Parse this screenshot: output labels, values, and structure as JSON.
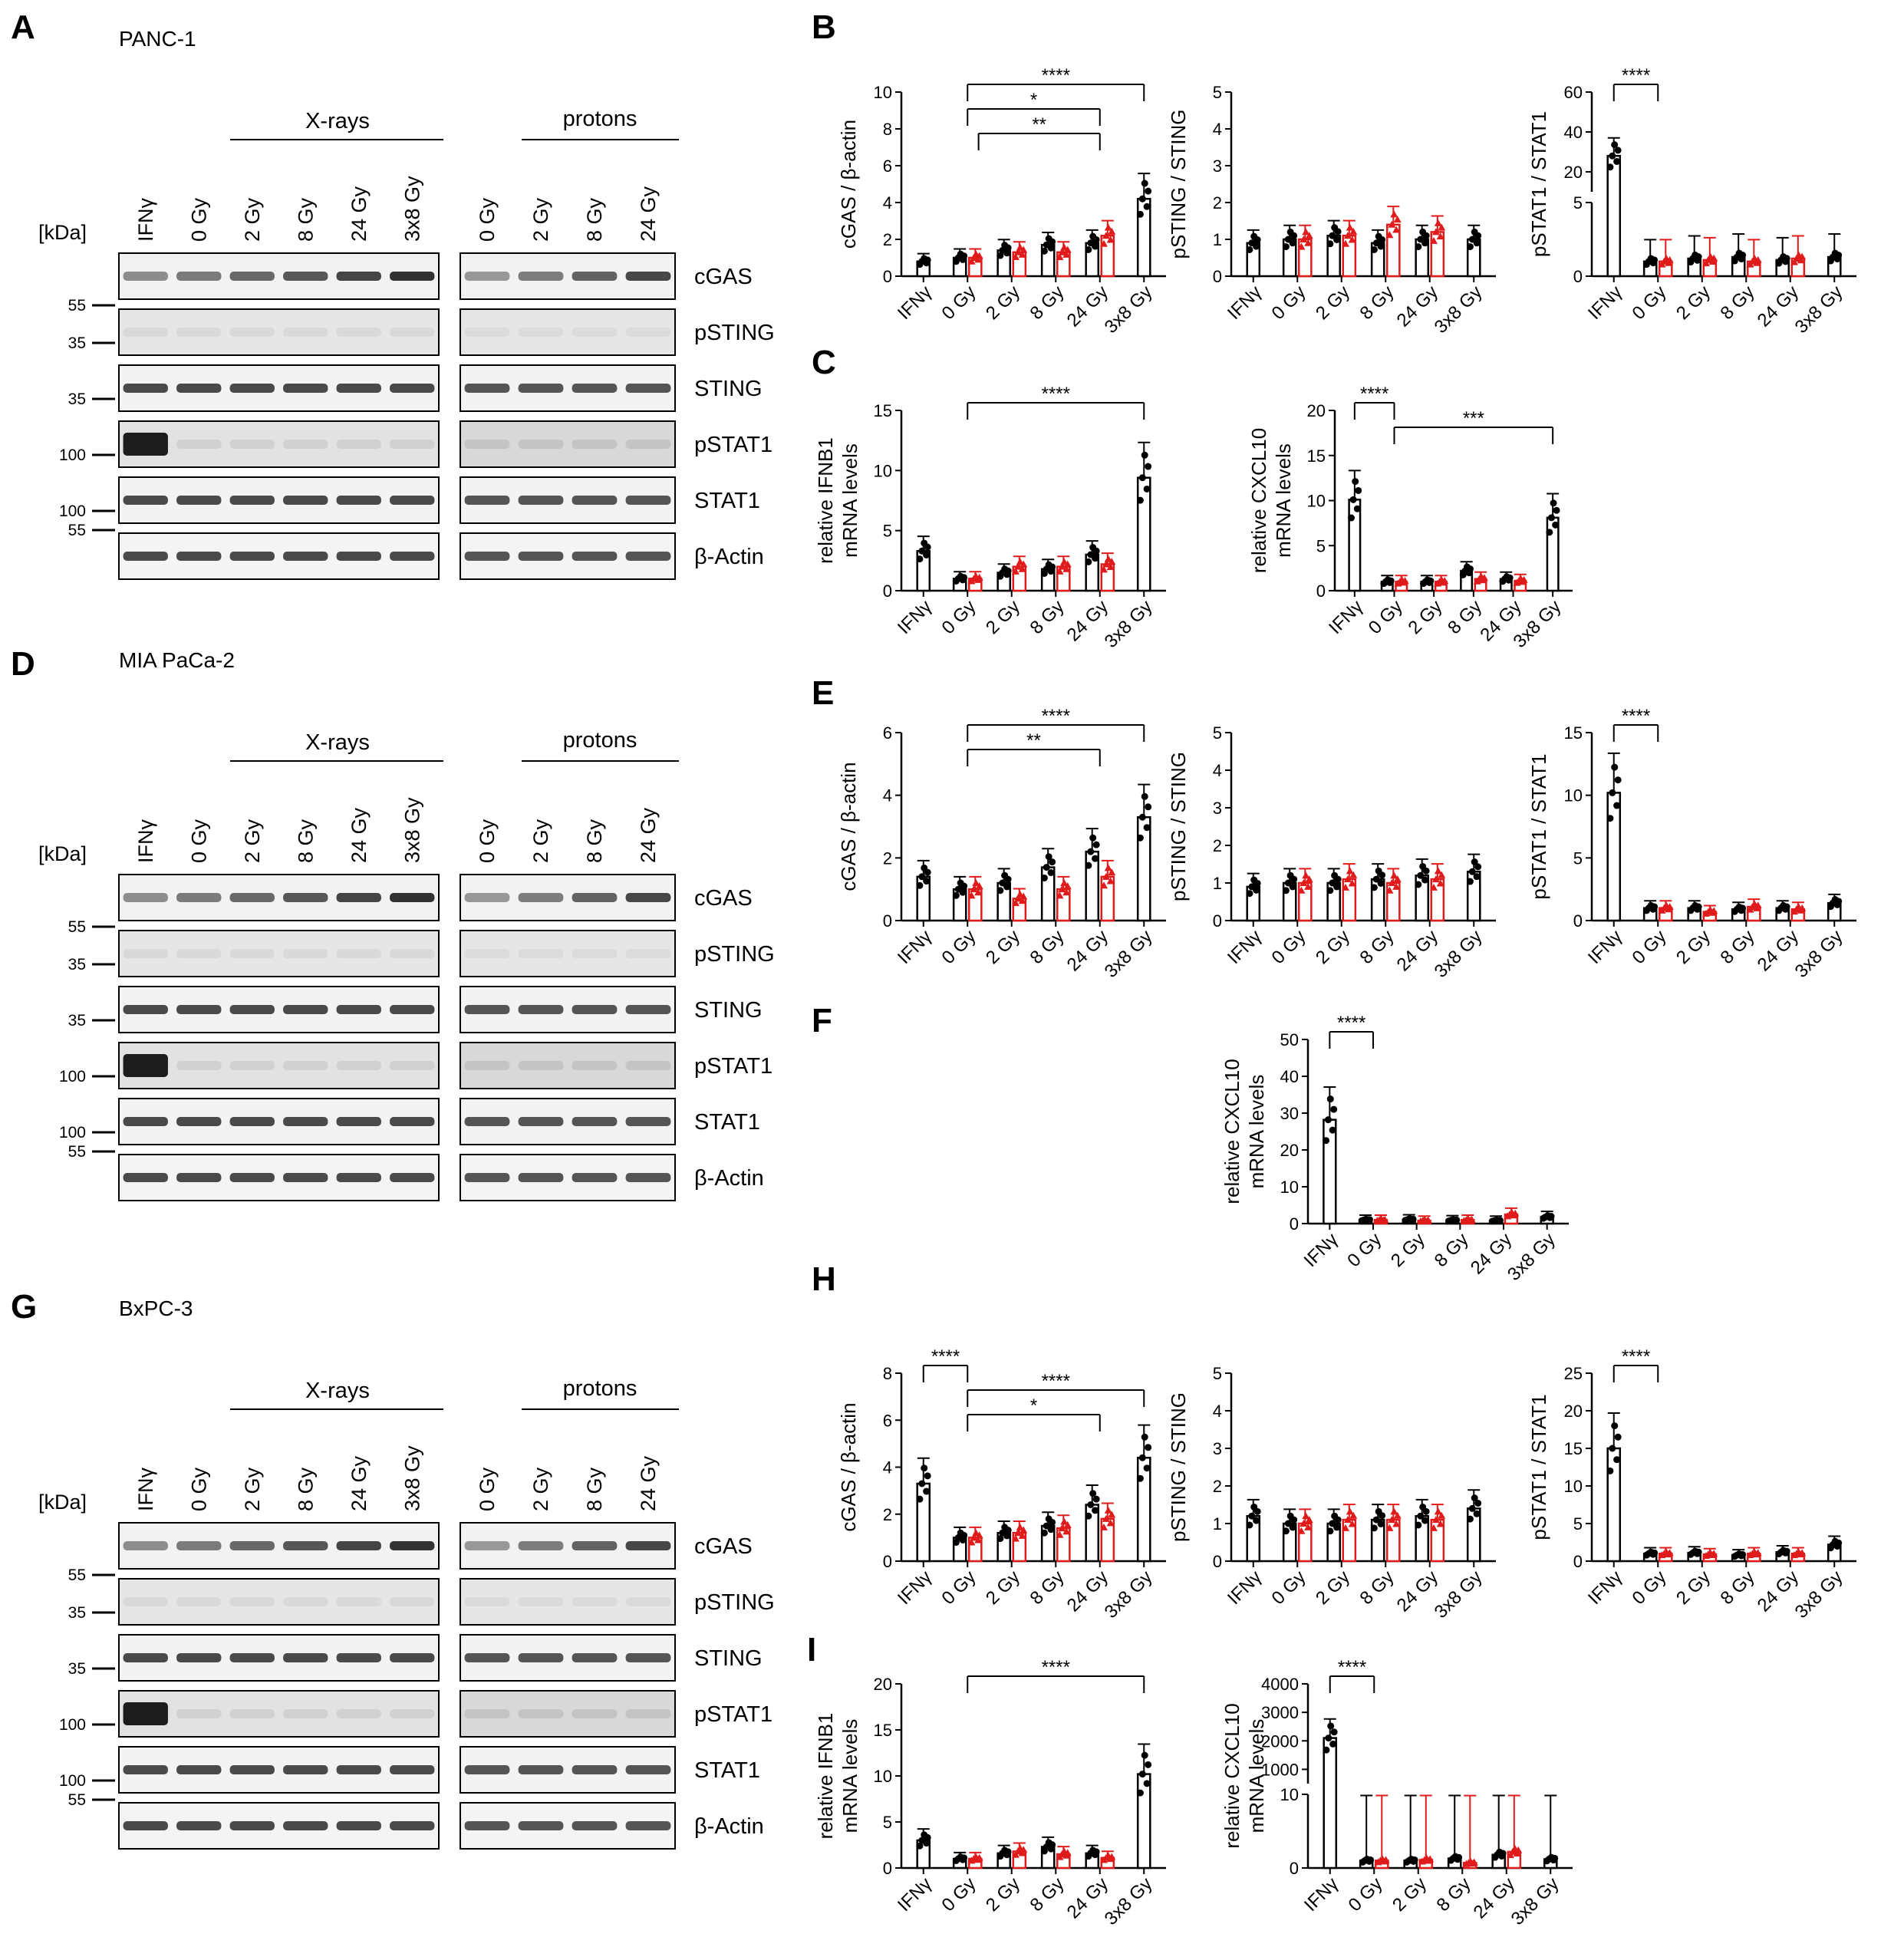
{
  "panel_labels": {
    "A": "A",
    "B": "B",
    "C": "C",
    "D": "D",
    "E": "E",
    "F": "F",
    "G": "G",
    "H": "H",
    "I": "I"
  },
  "colors": {
    "xrays": "#000000",
    "protons": "#e01b1b"
  },
  "blots": [
    {
      "label": "A",
      "cell_line": "PANC-1",
      "y0": 60,
      "kda_label": "[kDa]",
      "xray_label": "X-rays",
      "proton_label": "protons",
      "xray_lanes": [
        "IFNγ",
        "0 Gy",
        "2 Gy",
        "8 Gy",
        "24 Gy",
        "3x8 Gy"
      ],
      "proton_lanes": [
        "0 Gy",
        "2 Gy",
        "8 Gy",
        "24 Gy"
      ],
      "proteins": [
        "cGAS",
        "pSTING",
        "STING",
        "pSTAT1",
        "STAT1",
        "β-Actin"
      ],
      "markers": [
        "55",
        "35",
        "35",
        "100",
        "100",
        "55"
      ]
    },
    {
      "label": "D",
      "cell_line": "MIA PaCa-2",
      "y0": 870,
      "kda_label": "[kDa]",
      "xray_label": "X-rays",
      "proton_label": "protons",
      "xray_lanes": [
        "IFNγ",
        "0 Gy",
        "2 Gy",
        "8 Gy",
        "24 Gy",
        "3x8 Gy"
      ],
      "proton_lanes": [
        "0 Gy",
        "2 Gy",
        "8 Gy",
        "24 Gy"
      ],
      "proteins": [
        "cGAS",
        "pSTING",
        "STING",
        "pSTAT1",
        "STAT1",
        "β-Actin"
      ],
      "markers": [
        "55",
        "35",
        "35",
        "100",
        "100",
        "55"
      ]
    },
    {
      "label": "G",
      "cell_line": "BxPC-3",
      "y0": 1715,
      "kda_label": "[kDa]",
      "xray_label": "X-rays",
      "proton_label": "protons",
      "xray_lanes": [
        "IFNγ",
        "0 Gy",
        "2 Gy",
        "8 Gy",
        "24 Gy",
        "3x8 Gy"
      ],
      "proton_lanes": [
        "0 Gy",
        "2 Gy",
        "8 Gy",
        "24 Gy"
      ],
      "proteins": [
        "cGAS",
        "pSTING",
        "STING",
        "pSTAT1",
        "STAT1",
        "β-Actin"
      ],
      "markers": [
        "55",
        "35",
        "35",
        "100",
        "100",
        "55"
      ]
    }
  ],
  "chart_data": [
    {
      "id": "B1",
      "type": "bar",
      "ylabel": "cGAS / β-actin",
      "ylim": [
        0,
        10
      ],
      "yticks": [
        0,
        2,
        4,
        6,
        8,
        10
      ],
      "categories": [
        "IFNγ",
        "0 Gy",
        "2 Gy",
        "8 Gy",
        "24 Gy",
        "3x8 Gy"
      ],
      "series": [
        {
          "values": [
            0.8,
            1.0,
            1.4,
            1.7,
            1.8,
            4.2
          ]
        },
        {
          "values": [
            null,
            1.0,
            1.3,
            1.3,
            2.2,
            null
          ]
        }
      ],
      "significance": [
        {
          "from": 1,
          "to": 5,
          "label": "****"
        },
        {
          "from": 1,
          "to": 4,
          "label": "*"
        },
        {
          "from": 1.25,
          "to": 4,
          "label": "**"
        }
      ]
    },
    {
      "id": "B2",
      "type": "bar",
      "ylabel": "pSTING / STING",
      "ylim": [
        0,
        5
      ],
      "yticks": [
        0,
        1,
        2,
        3,
        4,
        5
      ],
      "categories": [
        "IFNγ",
        "0 Gy",
        "2 Gy",
        "8 Gy",
        "24 Gy",
        "3x8 Gy"
      ],
      "series": [
        {
          "values": [
            0.9,
            1.0,
            1.1,
            0.9,
            1.0,
            1.0
          ]
        },
        {
          "values": [
            null,
            1.0,
            1.1,
            1.4,
            1.2,
            null
          ]
        }
      ],
      "significance": []
    },
    {
      "id": "B3",
      "type": "bar",
      "ylabel": "pSTAT1 / STAT1",
      "ylim": [
        0,
        60
      ],
      "yticks_lower": [
        0,
        5
      ],
      "yticks_upper": [
        20,
        40,
        60
      ],
      "categories": [
        "IFNγ",
        "0 Gy",
        "2 Gy",
        "8 Gy",
        "24 Gy",
        "3x8 Gy"
      ],
      "series": [
        {
          "values": [
            28,
            1.0,
            1.2,
            1.3,
            1.1,
            1.3
          ]
        },
        {
          "values": [
            null,
            1.0,
            1.1,
            1.0,
            1.2,
            null
          ]
        }
      ],
      "significance": [
        {
          "from": 0,
          "to": 1,
          "label": "****"
        }
      ]
    },
    {
      "id": "C1",
      "type": "bar",
      "ylabel": "relative IFNB1 mRNA levels",
      "ylabel_lines": [
        "relative IFNB1",
        "mRNA levels"
      ],
      "ylim": [
        0,
        15
      ],
      "yticks": [
        0,
        5,
        10,
        15
      ],
      "categories": [
        "IFNγ",
        "0 Gy",
        "2 Gy",
        "8 Gy",
        "24 Gy",
        "3x8 Gy"
      ],
      "series": [
        {
          "values": [
            3.3,
            1.0,
            1.5,
            1.8,
            3.0,
            9.4
          ]
        },
        {
          "values": [
            null,
            1.0,
            2.0,
            2.0,
            2.2,
            null
          ]
        }
      ],
      "significance": [
        {
          "from": 1,
          "to": 5,
          "label": "****"
        }
      ]
    },
    {
      "id": "C2",
      "type": "bar",
      "ylabel": "relative CXCL10 mRNA levels",
      "ylabel_lines": [
        "relative CXCL10",
        "mRNA levels"
      ],
      "ylim": [
        0,
        20
      ],
      "yticks": [
        0,
        5,
        10,
        15,
        20
      ],
      "categories": [
        "IFNγ",
        "0 Gy",
        "2 Gy",
        "8 Gy",
        "24 Gy",
        "3x8 Gy"
      ],
      "series": [
        {
          "values": [
            10.1,
            1.0,
            1.0,
            2.2,
            1.3,
            8.1
          ]
        },
        {
          "values": [
            null,
            1.0,
            1.0,
            1.3,
            1.1,
            null
          ]
        }
      ],
      "significance": [
        {
          "from": 0,
          "to": 1,
          "label": "****"
        },
        {
          "from": 1,
          "to": 5,
          "label": "***"
        }
      ]
    },
    {
      "id": "E1",
      "type": "bar",
      "ylabel": "cGAS / β-actin",
      "ylim": [
        0,
        6
      ],
      "yticks": [
        0,
        2,
        4,
        6
      ],
      "categories": [
        "IFNγ",
        "0 Gy",
        "2 Gy",
        "8 Gy",
        "24 Gy",
        "3x8 Gy"
      ],
      "series": [
        {
          "values": [
            1.4,
            1.0,
            1.2,
            1.7,
            2.2,
            3.3
          ]
        },
        {
          "values": [
            null,
            1.0,
            0.7,
            1.0,
            1.4,
            null
          ]
        }
      ],
      "significance": [
        {
          "from": 1,
          "to": 5,
          "label": "****"
        },
        {
          "from": 1,
          "to": 4,
          "label": "**"
        }
      ]
    },
    {
      "id": "E2",
      "type": "bar",
      "ylabel": "pSTING / STING",
      "ylim": [
        0,
        5
      ],
      "yticks": [
        0,
        1,
        2,
        3,
        4,
        5
      ],
      "categories": [
        "IFNγ",
        "0 Gy",
        "2 Gy",
        "8 Gy",
        "24 Gy",
        "3x8 Gy"
      ],
      "series": [
        {
          "values": [
            0.9,
            1.0,
            1.0,
            1.1,
            1.2,
            1.3
          ]
        },
        {
          "values": [
            null,
            1.0,
            1.1,
            1.0,
            1.1,
            null
          ]
        }
      ],
      "significance": []
    },
    {
      "id": "E3",
      "type": "bar",
      "ylabel": "pSTAT1 / STAT1",
      "ylim": [
        0,
        15
      ],
      "yticks": [
        0,
        5,
        10,
        15
      ],
      "categories": [
        "IFNγ",
        "0 Gy",
        "2 Gy",
        "8 Gy",
        "24 Gy",
        "3x8 Gy"
      ],
      "series": [
        {
          "values": [
            10.2,
            1.0,
            1.0,
            0.9,
            1.0,
            1.4
          ]
        },
        {
          "values": [
            null,
            1.0,
            0.7,
            1.1,
            0.9,
            null
          ]
        }
      ],
      "significance": [
        {
          "from": 0,
          "to": 1,
          "label": "****"
        }
      ]
    },
    {
      "id": "F1",
      "type": "bar",
      "ylabel": "relative CXCL10 mRNA levels",
      "ylabel_lines": [
        "relative CXCL10",
        "mRNA levels"
      ],
      "ylim": [
        0,
        50
      ],
      "yticks": [
        0,
        10,
        20,
        30,
        40,
        50
      ],
      "categories": [
        "IFNγ",
        "0 Gy",
        "2 Gy",
        "8 Gy",
        "24 Gy",
        "3x8 Gy"
      ],
      "series": [
        {
          "values": [
            28.2,
            1.0,
            1.1,
            0.9,
            0.8,
            1.8
          ]
        },
        {
          "values": [
            null,
            1.0,
            0.8,
            1.0,
            2.5,
            null
          ]
        }
      ],
      "significance": [
        {
          "from": 0,
          "to": 1,
          "label": "****"
        }
      ]
    },
    {
      "id": "H1",
      "type": "bar",
      "ylabel": "cGAS / β-actin",
      "ylim": [
        0,
        8
      ],
      "yticks": [
        0,
        2,
        4,
        6,
        8
      ],
      "categories": [
        "IFNγ",
        "0 Gy",
        "2 Gy",
        "8 Gy",
        "24 Gy",
        "3x8 Gy"
      ],
      "series": [
        {
          "values": [
            3.3,
            1.0,
            1.2,
            1.5,
            2.4,
            4.4
          ]
        },
        {
          "values": [
            null,
            1.0,
            1.2,
            1.4,
            1.8,
            null
          ]
        }
      ],
      "significance": [
        {
          "from": 0,
          "to": 1,
          "label": "****"
        },
        {
          "from": 1,
          "to": 5,
          "label": "****"
        },
        {
          "from": 1,
          "to": 4,
          "label": "*"
        }
      ]
    },
    {
      "id": "H2",
      "type": "bar",
      "ylabel": "pSTING / STING",
      "ylim": [
        0,
        5
      ],
      "yticks": [
        0,
        1,
        2,
        3,
        4,
        5
      ],
      "categories": [
        "IFNγ",
        "0 Gy",
        "2 Gy",
        "8 Gy",
        "24 Gy",
        "3x8 Gy"
      ],
      "series": [
        {
          "values": [
            1.2,
            1.0,
            1.0,
            1.1,
            1.2,
            1.4
          ]
        },
        {
          "values": [
            null,
            1.0,
            1.1,
            1.1,
            1.1,
            null
          ]
        }
      ],
      "significance": []
    },
    {
      "id": "H3",
      "type": "bar",
      "ylabel": "pSTAT1 / STAT1",
      "ylim": [
        0,
        25
      ],
      "yticks": [
        0,
        5,
        10,
        15,
        20,
        25
      ],
      "categories": [
        "IFNγ",
        "0 Gy",
        "2 Gy",
        "8 Gy",
        "24 Gy",
        "3x8 Gy"
      ],
      "series": [
        {
          "values": [
            15,
            1.0,
            1.1,
            0.8,
            1.2,
            2.2
          ]
        },
        {
          "values": [
            null,
            1.0,
            0.9,
            1.0,
            1.0,
            null
          ]
        }
      ],
      "significance": [
        {
          "from": 0,
          "to": 1,
          "label": "****"
        }
      ]
    },
    {
      "id": "I1",
      "type": "bar",
      "ylabel": "relative IFNB1 mRNA levels",
      "ylabel_lines": [
        "relative IFNB1",
        "mRNA levels"
      ],
      "ylim": [
        0,
        20
      ],
      "yticks": [
        0,
        5,
        10,
        15,
        20
      ],
      "categories": [
        "IFNγ",
        "0 Gy",
        "2 Gy",
        "8 Gy",
        "24 Gy",
        "3x8 Gy"
      ],
      "series": [
        {
          "values": [
            3.0,
            1.0,
            1.6,
            2.3,
            1.6,
            10.2
          ]
        },
        {
          "values": [
            null,
            1.0,
            1.8,
            1.5,
            1.1,
            null
          ]
        }
      ],
      "significance": [
        {
          "from": 1,
          "to": 5,
          "label": "****"
        }
      ]
    },
    {
      "id": "I2",
      "type": "bar",
      "ylabel": "relative CXCL10 mRNA levels",
      "ylabel_lines": [
        "relative CXCL10",
        "mRNA levels"
      ],
      "ylim": [
        0,
        4000
      ],
      "yticks_lower": [
        0,
        10
      ],
      "yticks_upper": [
        1000,
        2000,
        3000,
        4000
      ],
      "categories": [
        "IFNγ",
        "0 Gy",
        "2 Gy",
        "8 Gy",
        "24 Gy",
        "3x8 Gy"
      ],
      "series": [
        {
          "values": [
            2100,
            1.0,
            1.0,
            1.3,
            1.8,
            1.2
          ]
        },
        {
          "values": [
            null,
            1.0,
            1.1,
            0.7,
            2.2,
            null
          ]
        }
      ],
      "significance": [
        {
          "from": 0,
          "to": 1,
          "label": "****"
        }
      ]
    }
  ]
}
